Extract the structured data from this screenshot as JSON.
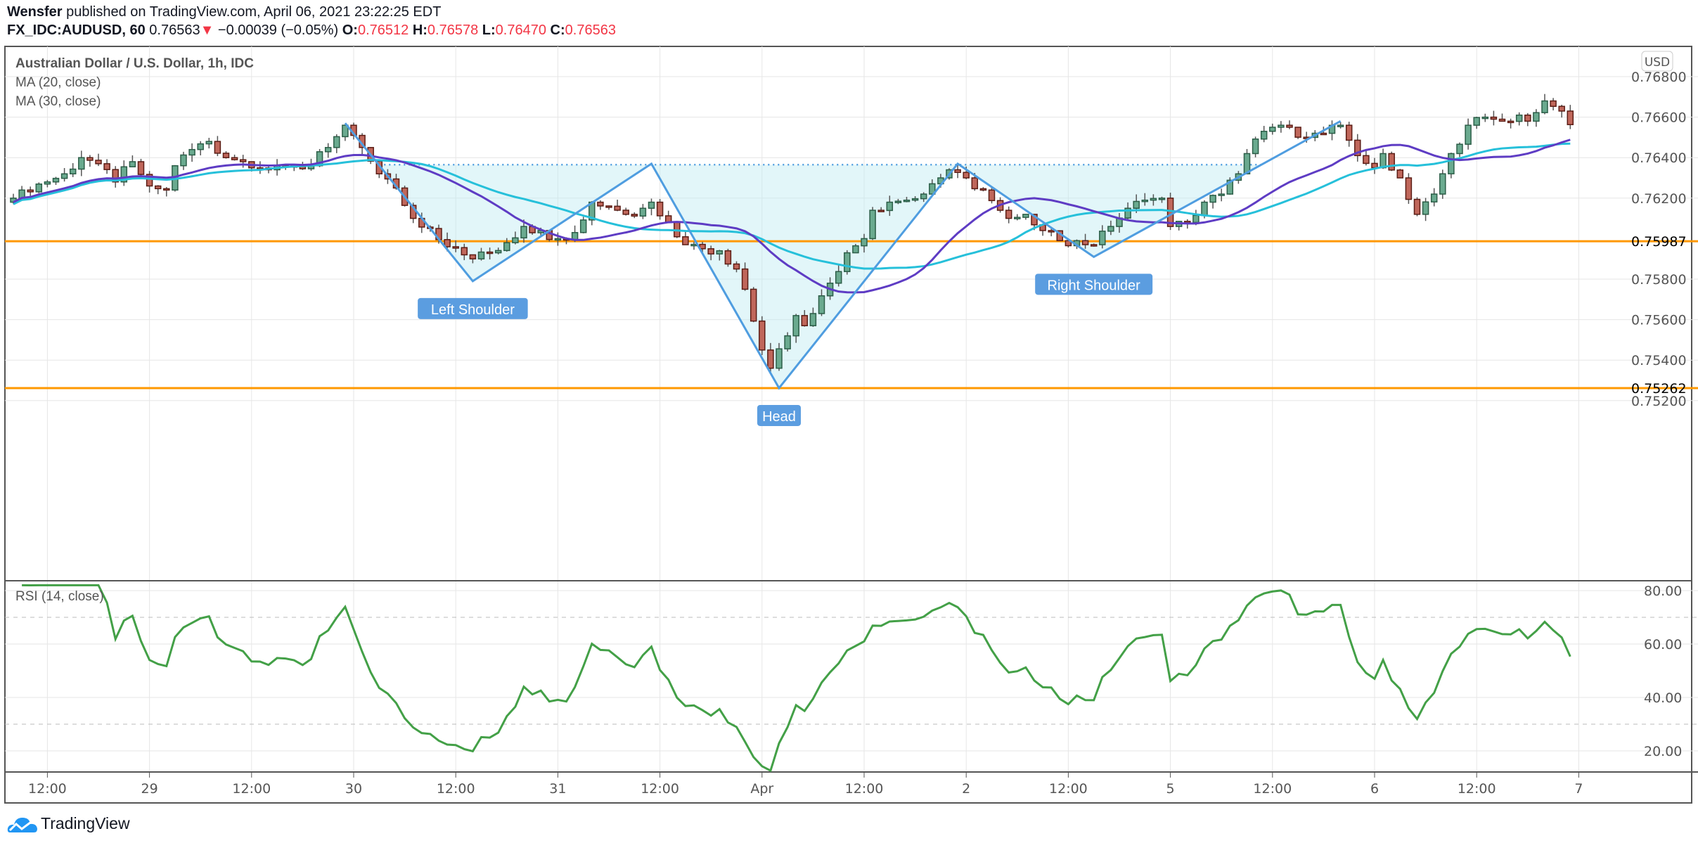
{
  "header": {
    "author": "Wensfer",
    "published": "published on TradingView.com, April 06, 2021 23:22:25 EDT",
    "symbol": "FX_IDC:AUDUSD, 60",
    "last": "0.76563",
    "change": "−0.00039 (−0.05%)",
    "o_label": "O:",
    "o": "0.76512",
    "h_label": "H:",
    "h": "0.76578",
    "l_label": "L:",
    "l": "0.76470",
    "c_label": "C:",
    "c": "0.76563"
  },
  "legend": {
    "title": "Australian Dollar / U.S. Dollar, 1h, IDC",
    "ma20": "MA (20, close)",
    "ma30": "MA (30, close)",
    "rsi": "RSI (14, close)"
  },
  "footer": {
    "brand": "TradingView"
  },
  "colors": {
    "up": "#6aaa8f",
    "down": "#c0675b",
    "ma20": "#5e3cc4",
    "ma30": "#26c0da",
    "rsi": "#43a047",
    "level": "#ff9800",
    "pattern": "#4f9de0"
  },
  "chart_data": {
    "type": "candlestick",
    "currency_label": "USD",
    "price_ylim": [
      0.7516,
      0.769
    ],
    "price_ticks": [
      "0.76800",
      "0.76600",
      "0.76400",
      "0.76200",
      "0.75800",
      "0.75600",
      "0.75400",
      "0.75200"
    ],
    "price_tick_values": [
      0.768,
      0.766,
      0.764,
      0.762,
      0.758,
      0.756,
      0.754,
      0.752
    ],
    "levels": [
      {
        "value": 0.75987,
        "label": "0.75987"
      },
      {
        "value": 0.75262,
        "label": "0.75262"
      }
    ],
    "time_labels": [
      {
        "bar": 4,
        "label": "12:00"
      },
      {
        "bar": 16,
        "label": "29"
      },
      {
        "bar": 28,
        "label": "12:00"
      },
      {
        "bar": 40,
        "label": "30"
      },
      {
        "bar": 52,
        "label": "12:00"
      },
      {
        "bar": 64,
        "label": "31"
      },
      {
        "bar": 76,
        "label": "12:00"
      },
      {
        "bar": 88,
        "label": "Apr"
      },
      {
        "bar": 100,
        "label": "12:00"
      },
      {
        "bar": 112,
        "label": "2"
      },
      {
        "bar": 124,
        "label": "12:00"
      },
      {
        "bar": 136,
        "label": "5"
      },
      {
        "bar": 148,
        "label": "12:00"
      },
      {
        "bar": 160,
        "label": "6"
      },
      {
        "bar": 172,
        "label": "12:00"
      },
      {
        "bar": 184,
        "label": "7"
      }
    ],
    "close_keyframes": [
      [
        0,
        0.762
      ],
      [
        1,
        0.7624
      ],
      [
        4,
        0.7628
      ],
      [
        6,
        0.7632
      ],
      [
        8,
        0.764
      ],
      [
        10,
        0.7637
      ],
      [
        12,
        0.7628
      ],
      [
        14,
        0.7638
      ],
      [
        16,
        0.7626
      ],
      [
        18,
        0.7624
      ],
      [
        19,
        0.7636
      ],
      [
        21,
        0.7644
      ],
      [
        23,
        0.7648
      ],
      [
        25,
        0.764
      ],
      [
        27,
        0.7638
      ],
      [
        30,
        0.7634
      ],
      [
        32,
        0.7636
      ],
      [
        35,
        0.7636
      ],
      [
        37,
        0.7645
      ],
      [
        39,
        0.7656
      ],
      [
        41,
        0.7645
      ],
      [
        43,
        0.7632
      ],
      [
        45,
        0.7625
      ],
      [
        47,
        0.761
      ],
      [
        49,
        0.7605
      ],
      [
        51,
        0.7596
      ],
      [
        53,
        0.7592
      ],
      [
        54,
        0.759
      ],
      [
        56,
        0.7593
      ],
      [
        58,
        0.7598
      ],
      [
        60,
        0.7606
      ],
      [
        62,
        0.7604
      ],
      [
        64,
        0.76
      ],
      [
        66,
        0.7603
      ],
      [
        68,
        0.7618
      ],
      [
        70,
        0.7616
      ],
      [
        72,
        0.7612
      ],
      [
        74,
        0.7615
      ],
      [
        75,
        0.7618
      ],
      [
        77,
        0.7608
      ],
      [
        79,
        0.7597
      ],
      [
        81,
        0.7595
      ],
      [
        83,
        0.7594
      ],
      [
        85,
        0.7585
      ],
      [
        86,
        0.7575
      ],
      [
        88,
        0.7545
      ],
      [
        89,
        0.7536
      ],
      [
        91,
        0.7552
      ],
      [
        92,
        0.7562
      ],
      [
        93,
        0.7557
      ],
      [
        94,
        0.7563
      ],
      [
        96,
        0.7578
      ],
      [
        98,
        0.7593
      ],
      [
        100,
        0.76
      ],
      [
        101,
        0.7614
      ],
      [
        103,
        0.7618
      ],
      [
        105,
        0.7619
      ],
      [
        107,
        0.7622
      ],
      [
        109,
        0.763
      ],
      [
        110,
        0.7634
      ],
      [
        112,
        0.763
      ],
      [
        114,
        0.7624
      ],
      [
        116,
        0.7614
      ],
      [
        117,
        0.761
      ],
      [
        119,
        0.7612
      ],
      [
        121,
        0.7604
      ],
      [
        123,
        0.7599
      ],
      [
        125,
        0.7599
      ],
      [
        127,
        0.7597
      ],
      [
        129,
        0.7606
      ],
      [
        131,
        0.7615
      ],
      [
        133,
        0.7619
      ],
      [
        135,
        0.762
      ],
      [
        136,
        0.7606
      ],
      [
        138,
        0.7608
      ],
      [
        140,
        0.7618
      ],
      [
        142,
        0.7622
      ],
      [
        144,
        0.7632
      ],
      [
        145,
        0.7642
      ],
      [
        147,
        0.7653
      ],
      [
        149,
        0.7656
      ],
      [
        150,
        0.7655
      ],
      [
        152,
        0.765
      ],
      [
        154,
        0.7652
      ],
      [
        156,
        0.7656
      ],
      [
        158,
        0.7641
      ],
      [
        160,
        0.7635
      ],
      [
        161,
        0.7642
      ],
      [
        163,
        0.763
      ],
      [
        165,
        0.7612
      ],
      [
        167,
        0.7622
      ],
      [
        169,
        0.7642
      ],
      [
        171,
        0.7656
      ],
      [
        173,
        0.766
      ],
      [
        175,
        0.7658
      ],
      [
        177,
        0.7661
      ],
      [
        178,
        0.7658
      ],
      [
        180,
        0.7668
      ],
      [
        182,
        0.7663
      ],
      [
        183,
        0.76563
      ]
    ],
    "pattern": {
      "points": [
        [
          39,
          0.7657
        ],
        [
          54,
          0.7579
        ],
        [
          75,
          0.7637
        ],
        [
          90,
          0.75262
        ],
        [
          111,
          0.7637
        ],
        [
          127,
          0.7591
        ],
        [
          156,
          0.7658
        ]
      ],
      "neckline": {
        "value": 0.76365,
        "from_bar": 43,
        "to_bar": 147
      },
      "annotations": [
        {
          "bar": 54,
          "price": 0.7579,
          "label": "Left Shoulder",
          "position": "below"
        },
        {
          "bar": 90,
          "price": 0.75262,
          "label": "Head",
          "position": "below"
        },
        {
          "bar": 127,
          "price": 0.7591,
          "label": "Right Shoulder",
          "position": "below"
        }
      ]
    },
    "indicators": [
      "MA 20 close",
      "MA 30 close",
      "RSI 14 close"
    ],
    "rsi_ylim": [
      10,
      85
    ],
    "rsi_ticks": [
      "80.00",
      "60.00",
      "40.00",
      "20.00"
    ],
    "rsi_tick_values": [
      80,
      60,
      40,
      20
    ],
    "rsi_bands": [
      70,
      30
    ]
  }
}
